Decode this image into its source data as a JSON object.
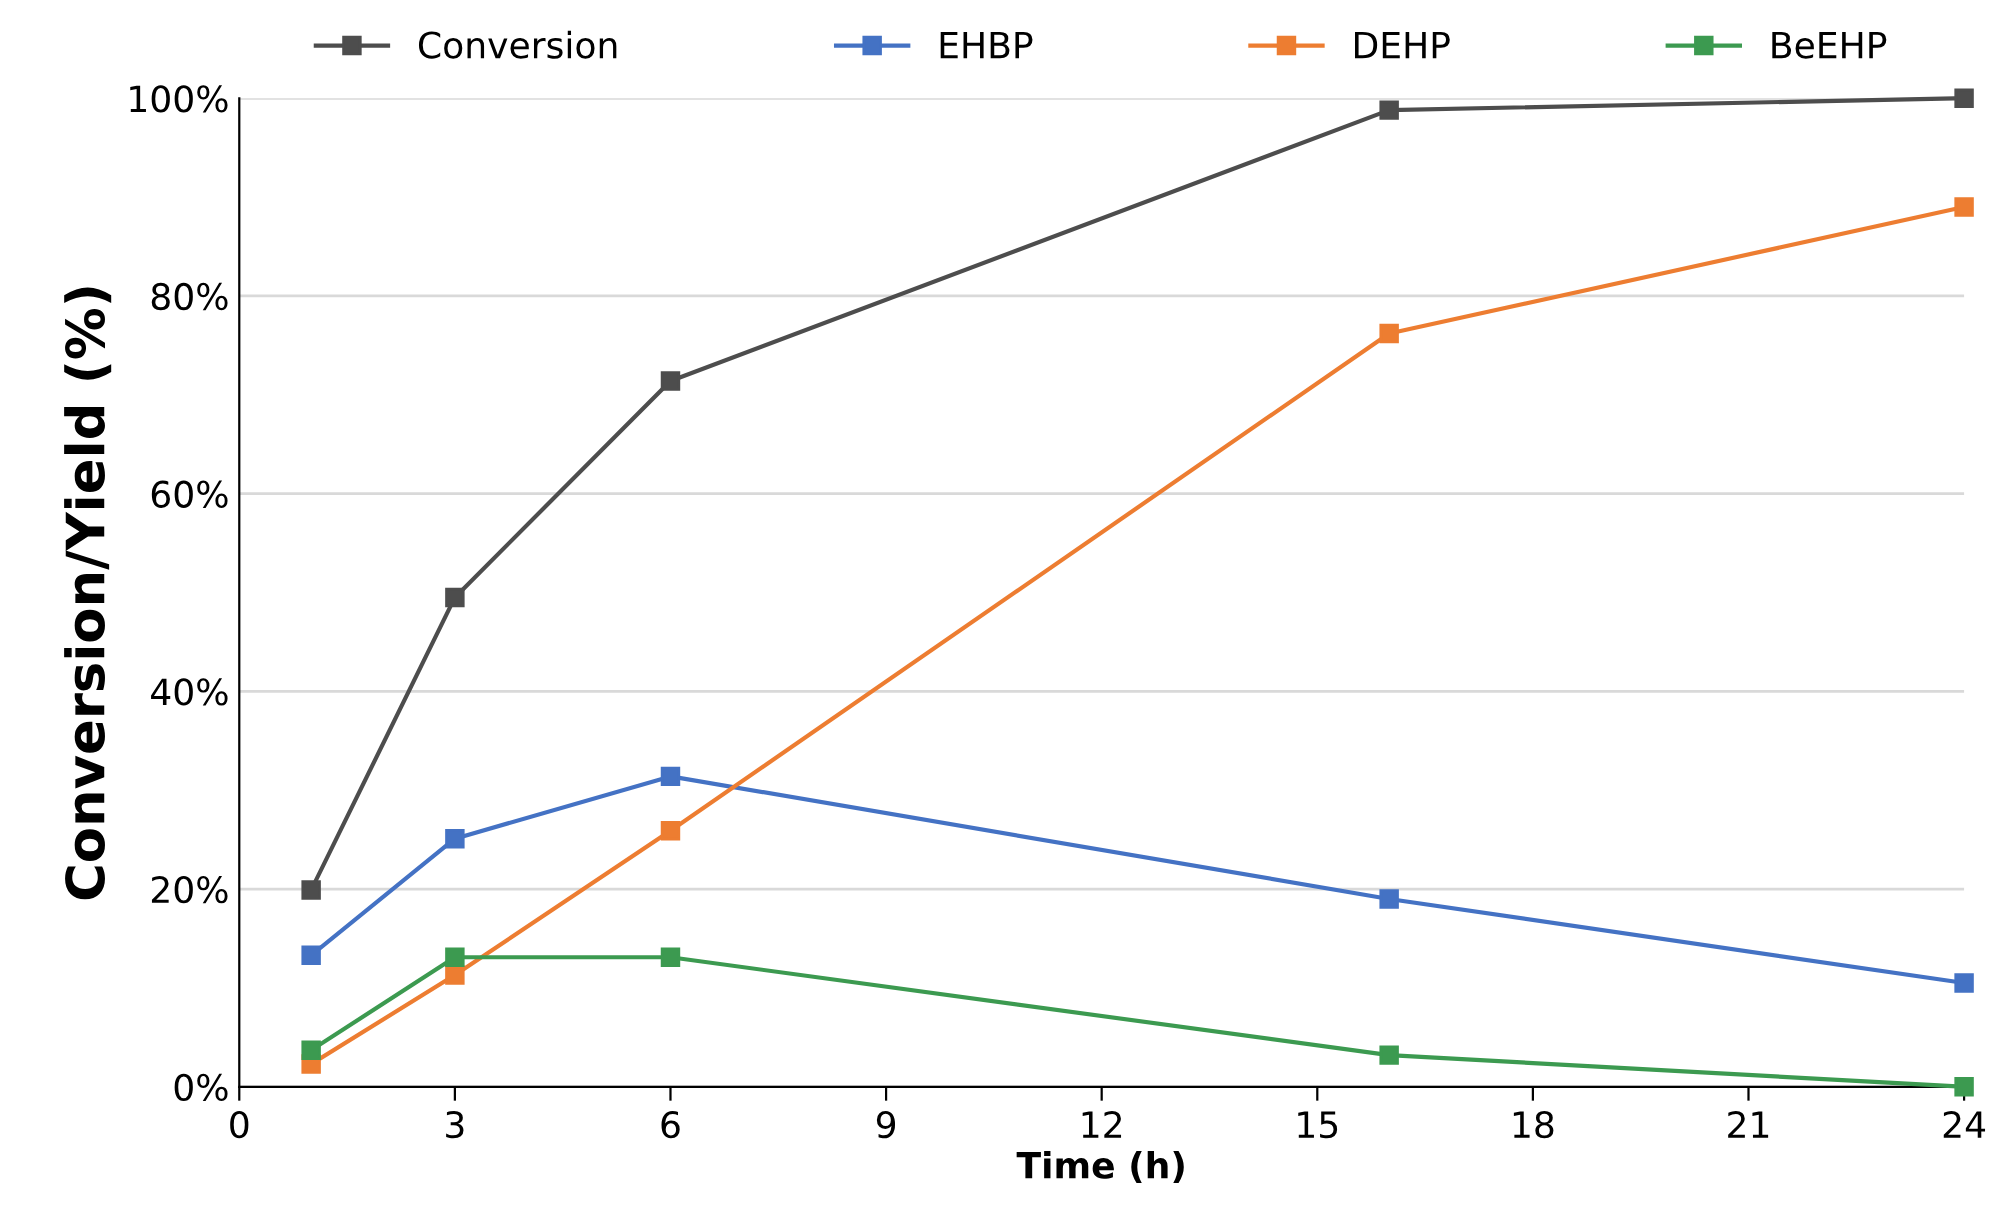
{
  "chart_data": {
    "type": "line",
    "xlabel": "Time (h)",
    "ylabel": "Conversion/Yield (%)",
    "x": [
      1,
      3,
      6,
      16,
      24
    ],
    "series": [
      {
        "name": "Conversion",
        "color": "#4d4d4d",
        "values": [
          19.9,
          49.5,
          71.4,
          98.8,
          100
        ]
      },
      {
        "name": "EHBP",
        "color": "#4472c4",
        "values": [
          13.3,
          25.1,
          31.4,
          19.0,
          10.5
        ]
      },
      {
        "name": "DEHP",
        "color": "#ed7d31",
        "values": [
          2.3,
          11.3,
          25.9,
          76.2,
          89.0
        ]
      },
      {
        "name": "BeEHP",
        "color": "#3c9a50",
        "values": [
          3.7,
          13.1,
          13.1,
          3.2,
          0
        ]
      }
    ],
    "xlim": [
      0,
      24
    ],
    "xticks": [
      0,
      3,
      6,
      9,
      12,
      15,
      18,
      21,
      24
    ],
    "ylim": [
      0,
      100
    ],
    "yticks": [
      {
        "value": 0,
        "label": "0%"
      },
      {
        "value": 20,
        "label": "20%"
      },
      {
        "value": 40,
        "label": "40%"
      },
      {
        "value": 60,
        "label": "60%"
      },
      {
        "value": 80,
        "label": "80%"
      },
      {
        "value": 100,
        "label": "100%"
      }
    ],
    "grid": "y",
    "legend": "top",
    "marker": "square",
    "line_style": "solid"
  }
}
